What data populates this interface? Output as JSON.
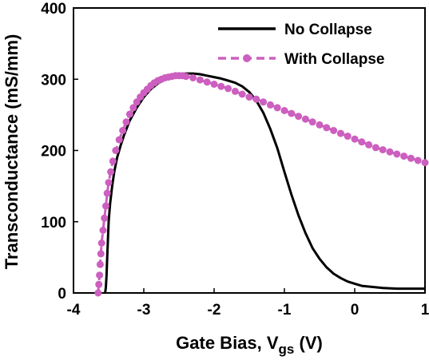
{
  "chart_data": {
    "type": "line",
    "title": "",
    "xlabel": "Gate Bias, V",
    "xlabel_subscript": "gs",
    "xlabel_unit": "(V)",
    "ylabel": "Transconductance (mS/mm)",
    "xlim": [
      -4,
      1
    ],
    "ylim": [
      0,
      400
    ],
    "xticks": [
      -4,
      -3,
      -2,
      -1,
      0,
      1
    ],
    "yticks": [
      0,
      100,
      200,
      300,
      400
    ],
    "grid": false,
    "legend_position": "top-right",
    "series": [
      {
        "name": "No Collapse",
        "color": "#000000",
        "style": "solid",
        "x": [
          -3.55,
          -3.54,
          -3.53,
          -3.52,
          -3.51,
          -3.5,
          -3.48,
          -3.45,
          -3.42,
          -3.38,
          -3.33,
          -3.28,
          -3.2,
          -3.1,
          -3.0,
          -2.9,
          -2.8,
          -2.7,
          -2.6,
          -2.5,
          -2.4,
          -2.3,
          -2.2,
          -2.1,
          -2.0,
          -1.9,
          -1.8,
          -1.7,
          -1.6,
          -1.5,
          -1.4,
          -1.3,
          -1.2,
          -1.1,
          -1.0,
          -0.9,
          -0.8,
          -0.7,
          -0.6,
          -0.5,
          -0.4,
          -0.3,
          -0.2,
          -0.1,
          0.0,
          0.1,
          0.2,
          0.3,
          0.4,
          0.6,
          0.8,
          1.0
        ],
        "y": [
          0,
          8,
          25,
          50,
          75,
          100,
          125,
          150,
          170,
          190,
          207,
          222,
          242,
          260,
          275,
          286,
          294,
          300,
          304,
          306,
          308,
          308,
          307,
          305,
          303,
          301,
          298,
          295,
          290,
          282,
          270,
          253,
          230,
          203,
          170,
          138,
          109,
          84,
          63,
          48,
          36,
          27,
          21,
          16,
          13,
          10,
          9,
          8,
          7,
          6,
          6,
          6
        ]
      },
      {
        "name": "With Collapse",
        "color": "#cc5fbf",
        "style": "dashed-markers",
        "x": [
          -3.65,
          -3.64,
          -3.63,
          -3.62,
          -3.61,
          -3.6,
          -3.58,
          -3.56,
          -3.54,
          -3.52,
          -3.5,
          -3.47,
          -3.44,
          -3.4,
          -3.35,
          -3.3,
          -3.25,
          -3.2,
          -3.15,
          -3.1,
          -3.05,
          -3.0,
          -2.95,
          -2.9,
          -2.85,
          -2.8,
          -2.75,
          -2.7,
          -2.65,
          -2.6,
          -2.55,
          -2.5,
          -2.45,
          -2.4,
          -2.3,
          -2.2,
          -2.1,
          -2.0,
          -1.9,
          -1.8,
          -1.7,
          -1.6,
          -1.5,
          -1.4,
          -1.3,
          -1.2,
          -1.1,
          -1.0,
          -0.9,
          -0.8,
          -0.7,
          -0.6,
          -0.5,
          -0.4,
          -0.3,
          -0.2,
          -0.1,
          0.0,
          0.1,
          0.2,
          0.3,
          0.4,
          0.5,
          0.6,
          0.7,
          0.8,
          0.9,
          1.0
        ],
        "y": [
          0,
          12,
          25,
          40,
          55,
          70,
          88,
          105,
          122,
          140,
          155,
          170,
          185,
          200,
          215,
          228,
          240,
          251,
          260,
          268,
          275,
          281,
          286,
          291,
          295,
          298,
          300,
          302,
          303,
          304,
          305,
          305,
          305,
          304,
          302,
          299,
          296,
          293,
          290,
          287,
          283,
          279,
          275,
          272,
          268,
          264,
          260,
          256,
          252,
          248,
          244,
          240,
          236,
          232,
          228,
          224,
          220,
          216,
          212,
          208,
          204,
          201,
          198,
          195,
          192,
          189,
          186,
          183
        ]
      }
    ]
  }
}
